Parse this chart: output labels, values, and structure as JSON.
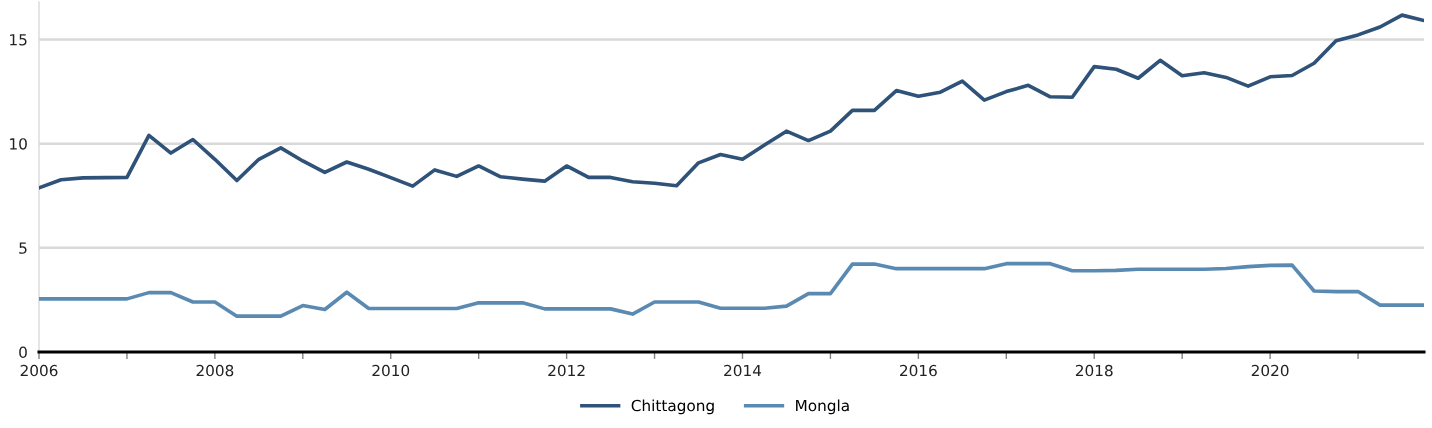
{
  "chart_data": {
    "type": "line",
    "x": [
      2006.0,
      2006.25,
      2006.5,
      2006.75,
      2007.0,
      2007.25,
      2007.5,
      2007.75,
      2008.0,
      2008.25,
      2008.5,
      2008.75,
      2009.0,
      2009.25,
      2009.5,
      2009.75,
      2010.0,
      2010.25,
      2010.5,
      2010.75,
      2011.0,
      2011.25,
      2011.5,
      2011.75,
      2012.0,
      2012.25,
      2012.5,
      2012.75,
      2013.0,
      2013.25,
      2013.5,
      2013.75,
      2014.0,
      2014.25,
      2014.5,
      2014.75,
      2015.0,
      2015.25,
      2015.5,
      2015.75,
      2016.0,
      2016.25,
      2016.5,
      2016.75,
      2017.0,
      2017.25,
      2017.5,
      2017.75,
      2018.0,
      2018.25,
      2018.5,
      2018.75,
      2019.0,
      2019.25,
      2019.5,
      2019.75,
      2020.0,
      2020.25,
      2020.5,
      2020.75,
      2021.0,
      2021.25,
      2021.5,
      2021.75
    ],
    "series": [
      {
        "name": "Chittagong",
        "color": "#2f5279",
        "values": [
          7.88,
          8.27,
          8.36,
          8.37,
          8.38,
          10.4,
          9.55,
          10.2,
          9.25,
          8.23,
          9.25,
          9.8,
          9.17,
          8.62,
          9.12,
          8.77,
          8.37,
          7.96,
          8.74,
          8.43,
          8.93,
          8.41,
          8.3,
          8.2,
          8.93,
          8.38,
          8.38,
          8.17,
          8.1,
          7.98,
          9.08,
          9.48,
          9.25,
          9.94,
          10.6,
          10.15,
          10.6,
          11.6,
          11.6,
          12.55,
          12.28,
          12.47,
          13.0,
          12.09,
          12.5,
          12.8,
          12.25,
          12.23,
          13.7,
          13.57,
          13.14,
          14.0,
          13.26,
          13.4,
          13.18,
          12.76,
          13.21,
          13.27,
          13.86,
          14.94,
          15.22,
          15.6,
          16.17,
          15.91
        ]
      },
      {
        "name": "Mongla",
        "color": "#5a8ab2",
        "values": [
          2.55,
          2.55,
          2.55,
          2.55,
          2.55,
          2.85,
          2.85,
          2.4,
          2.4,
          1.72,
          1.72,
          1.72,
          2.23,
          2.04,
          2.87,
          2.09,
          2.09,
          2.09,
          2.09,
          2.09,
          2.36,
          2.36,
          2.36,
          2.07,
          2.07,
          2.07,
          2.07,
          1.82,
          2.4,
          2.4,
          2.4,
          2.1,
          2.1,
          2.1,
          2.2,
          2.8,
          2.8,
          4.22,
          4.22,
          4.0,
          4.0,
          4.0,
          4.0,
          4.0,
          4.24,
          4.24,
          4.24,
          3.9,
          3.9,
          3.92,
          3.97,
          3.97,
          3.97,
          3.97,
          4.01,
          4.1,
          4.16,
          4.17,
          2.93,
          2.9,
          2.9,
          2.25,
          2.25,
          2.25
        ]
      }
    ],
    "xlim": [
      2006,
      2021.75
    ],
    "xticks": [
      2006,
      {
        "value": 2007,
        "label": null
      },
      2008,
      {
        "value": 2009,
        "label": null
      },
      2010,
      {
        "value": 2011,
        "label": null
      },
      2012,
      {
        "value": 2013,
        "label": null
      },
      2014,
      {
        "value": 2015,
        "label": null
      },
      2016,
      {
        "value": 2017,
        "label": null
      },
      2018,
      {
        "value": 2019,
        "label": null
      },
      2020,
      {
        "value": 2021,
        "label": null
      }
    ],
    "ylim": [
      0,
      16.8
    ],
    "yticks": [
      0,
      5,
      10,
      15
    ],
    "grid": "y",
    "legend": "bottom"
  }
}
